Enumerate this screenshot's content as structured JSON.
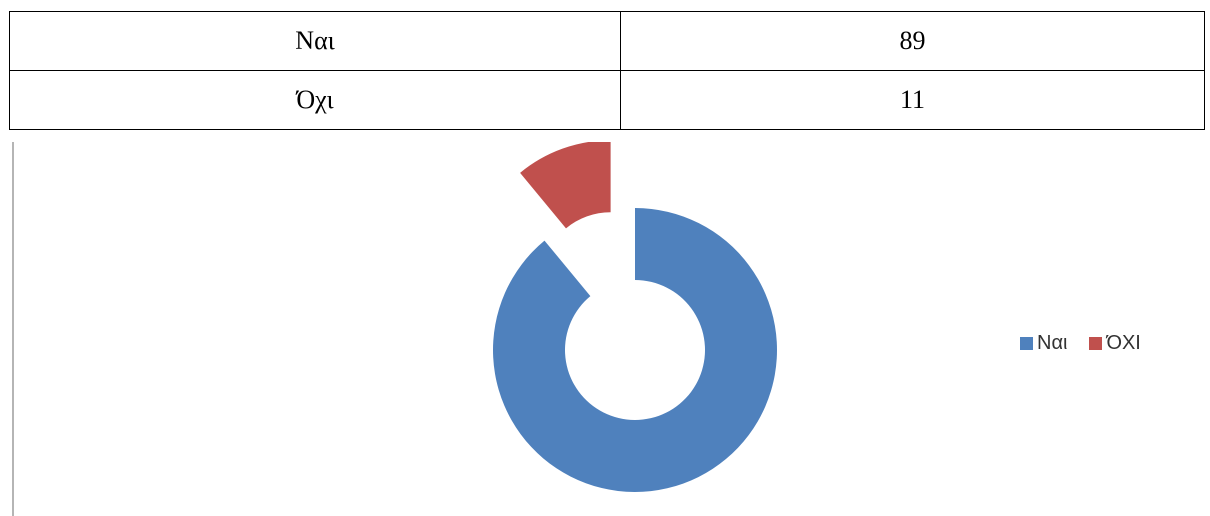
{
  "table": {
    "rows": [
      {
        "label": "Ναι",
        "value": "89"
      },
      {
        "label": "Όχι",
        "value": "11"
      }
    ]
  },
  "chart_data": {
    "type": "pie",
    "subtype": "doughnut",
    "categories": [
      "Ναι",
      "ΌΧΙ"
    ],
    "values": [
      89,
      11
    ],
    "colors": [
      "#4f81bd",
      "#c0504d"
    ],
    "exploded": true,
    "legend": "right"
  }
}
